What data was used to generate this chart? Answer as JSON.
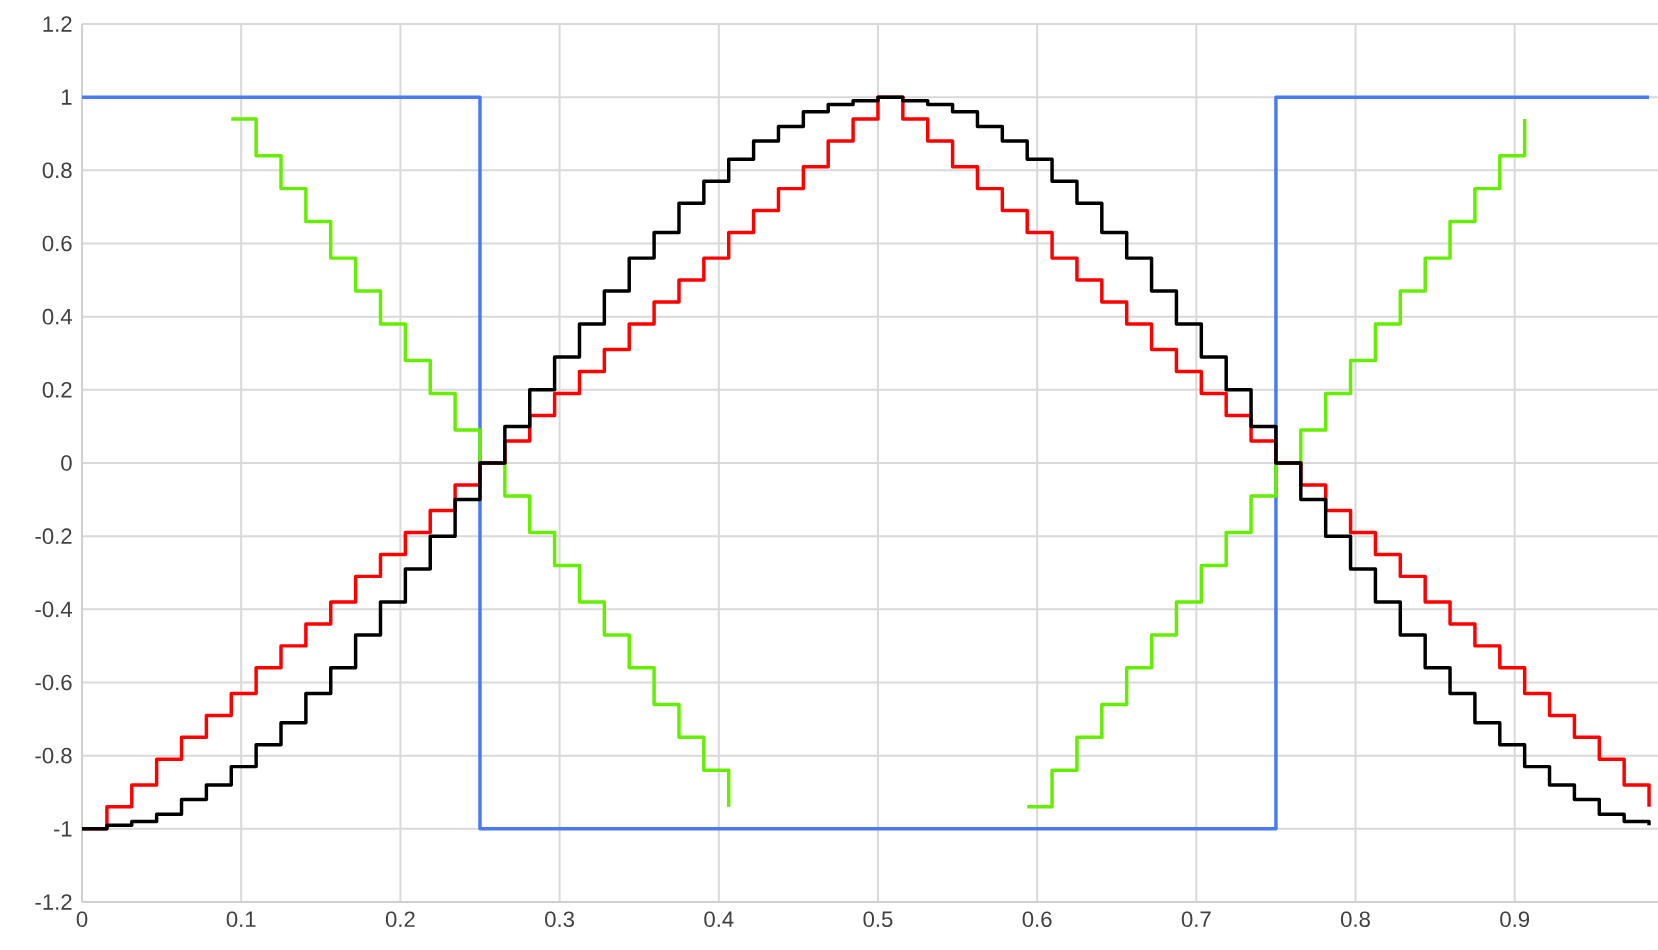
{
  "chart_data": {
    "type": "step",
    "x": [
      0,
      0.015625,
      0.03125,
      0.046875,
      0.0625,
      0.078125,
      0.09375,
      0.109375,
      0.125,
      0.140625,
      0.15625,
      0.171875,
      0.1875,
      0.203125,
      0.21875,
      0.234375,
      0.25,
      0.265625,
      0.28125,
      0.296875,
      0.3125,
      0.328125,
      0.34375,
      0.359375,
      0.375,
      0.390625,
      0.40625,
      0.421875,
      0.4375,
      0.453125,
      0.46875,
      0.484375,
      0.5,
      0.515625,
      0.53125,
      0.546875,
      0.5625,
      0.578125,
      0.59375,
      0.609375,
      0.625,
      0.640625,
      0.65625,
      0.671875,
      0.6875,
      0.703125,
      0.71875,
      0.734375,
      0.75,
      0.765625,
      0.78125,
      0.796875,
      0.8125,
      0.828125,
      0.84375,
      0.859375,
      0.875,
      0.890625,
      0.90625,
      0.921875,
      0.9375,
      0.953125,
      0.96875,
      0.984375
    ],
    "series": [
      {
        "color": "#4a7af0",
        "values": [
          1,
          1,
          1,
          1,
          1,
          1,
          1,
          1,
          1,
          1,
          1,
          1,
          1,
          1,
          1,
          1,
          -1,
          -1,
          -1,
          -1,
          -1,
          -1,
          -1,
          -1,
          -1,
          -1,
          -1,
          -1,
          -1,
          -1,
          -1,
          -1,
          -1,
          -1,
          -1,
          -1,
          -1,
          -1,
          -1,
          -1,
          -1,
          -1,
          -1,
          -1,
          -1,
          -1,
          -1,
          -1,
          1,
          1,
          1,
          1,
          1,
          1,
          1,
          1,
          1,
          1,
          1,
          1,
          1,
          1,
          1,
          1
        ]
      },
      {
        "color": "#66ee00",
        "values": [
          null,
          null,
          null,
          null,
          null,
          null,
          0.94,
          0.84,
          0.75,
          0.66,
          0.56,
          0.47,
          0.38,
          0.28,
          0.19,
          0.09,
          0,
          -0.09,
          -0.19,
          -0.28,
          -0.38,
          -0.47,
          -0.56,
          -0.66,
          -0.75,
          -0.84,
          -0.94,
          null,
          null,
          null,
          null,
          null,
          null,
          null,
          null,
          null,
          null,
          null,
          -0.94,
          -0.84,
          -0.75,
          -0.66,
          -0.56,
          -0.47,
          -0.38,
          -0.28,
          -0.19,
          -0.09,
          0,
          0.09,
          0.19,
          0.28,
          0.38,
          0.47,
          0.56,
          0.66,
          0.75,
          0.84,
          0.94,
          null,
          null,
          null,
          null,
          null
        ]
      },
      {
        "color": "#ff0000",
        "values": [
          -1,
          -0.94,
          -0.88,
          -0.81,
          -0.75,
          -0.69,
          -0.63,
          -0.56,
          -0.5,
          -0.44,
          -0.38,
          -0.31,
          -0.25,
          -0.19,
          -0.13,
          -0.06,
          0,
          0.06,
          0.13,
          0.19,
          0.25,
          0.31,
          0.38,
          0.44,
          0.5,
          0.56,
          0.63,
          0.69,
          0.75,
          0.81,
          0.88,
          0.94,
          1,
          0.94,
          0.88,
          0.81,
          0.75,
          0.69,
          0.63,
          0.56,
          0.5,
          0.44,
          0.38,
          0.31,
          0.25,
          0.19,
          0.13,
          0.06,
          0,
          -0.06,
          -0.13,
          -0.19,
          -0.25,
          -0.31,
          -0.38,
          -0.44,
          -0.5,
          -0.56,
          -0.63,
          -0.69,
          -0.75,
          -0.81,
          -0.88,
          -0.94
        ]
      },
      {
        "color": "#000000",
        "values": [
          -1,
          -0.99,
          -0.98,
          -0.96,
          -0.92,
          -0.88,
          -0.83,
          -0.77,
          -0.71,
          -0.63,
          -0.56,
          -0.47,
          -0.38,
          -0.29,
          -0.2,
          -0.1,
          0,
          0.1,
          0.2,
          0.29,
          0.38,
          0.47,
          0.56,
          0.63,
          0.71,
          0.77,
          0.83,
          0.88,
          0.92,
          0.96,
          0.98,
          0.99,
          1,
          0.99,
          0.98,
          0.96,
          0.92,
          0.88,
          0.83,
          0.77,
          0.71,
          0.63,
          0.56,
          0.47,
          0.38,
          0.29,
          0.2,
          0.1,
          0,
          -0.1,
          -0.2,
          -0.29,
          -0.38,
          -0.47,
          -0.56,
          -0.63,
          -0.71,
          -0.77,
          -0.83,
          -0.88,
          -0.92,
          -0.96,
          -0.98,
          -0.99
        ]
      }
    ],
    "xlim": [
      0,
      0.99
    ],
    "ylim": [
      -1.2,
      1.2
    ],
    "xticks": [
      0,
      0.1,
      0.2,
      0.3,
      0.4,
      0.5,
      0.6,
      0.7,
      0.8,
      0.9
    ],
    "yticks": [
      -1.2,
      -1,
      -0.8,
      -0.6,
      -0.4,
      -0.2,
      0,
      0.2,
      0.4,
      0.6,
      0.8,
      1,
      1.2
    ],
    "grid": true,
    "marker": "none",
    "line_style": "solid"
  }
}
